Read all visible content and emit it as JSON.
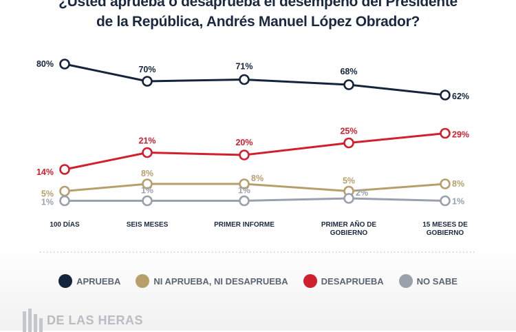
{
  "title": {
    "line1": "¿Usted aprueba o desaprueba el desempeño del Presidente",
    "line2": "de la República, Andrés Manuel López Obrador?"
  },
  "chart_data": {
    "type": "line",
    "categories": [
      "100 DÍAS",
      "SEIS MESES",
      "PRIMER INFORME",
      "PRIMER AÑO DE GOBIERNO",
      "15 MESES DE GOBIERNO"
    ],
    "category_lines": [
      [
        "100 DÍAS"
      ],
      [
        "SEIS MESES"
      ],
      [
        "PRIMER INFORME"
      ],
      [
        "PRIMER AÑO DE",
        "GOBIERNO"
      ],
      [
        "15 MESES DE",
        "GOBIERNO"
      ]
    ],
    "series": [
      {
        "name": "APRUEBA",
        "color": "#13243b",
        "values": [
          80,
          70,
          71,
          68,
          62
        ],
        "labels": [
          "80%",
          "70%",
          "71%",
          "68%",
          "62%"
        ]
      },
      {
        "name": "DESAPRUEBA",
        "color": "#d0202e",
        "values": [
          14,
          21,
          20,
          25,
          29
        ],
        "labels": [
          "14%",
          "21%",
          "20%",
          "25%",
          "29%"
        ]
      },
      {
        "name": "NI APRUEBA, NI DESAPRUEBA",
        "color": "#b79f6c",
        "values": [
          5,
          8,
          8,
          5,
          8
        ],
        "labels": [
          "5%",
          "8%",
          "8%",
          "5%",
          "8%"
        ]
      },
      {
        "name": "NO SABE",
        "color": "#9aa1ab",
        "values": [
          1,
          1,
          1,
          2,
          1
        ],
        "labels": [
          "1%",
          "1%",
          "1%",
          "2%",
          "1%"
        ]
      }
    ],
    "legend_order": [
      "APRUEBA",
      "NI APRUEBA, NI DESAPRUEBA",
      "DESAPRUEBA",
      "NO SABE"
    ],
    "legend_position": "bottom",
    "grid": false
  },
  "brand": {
    "name": "DE LAS HERAS"
  }
}
